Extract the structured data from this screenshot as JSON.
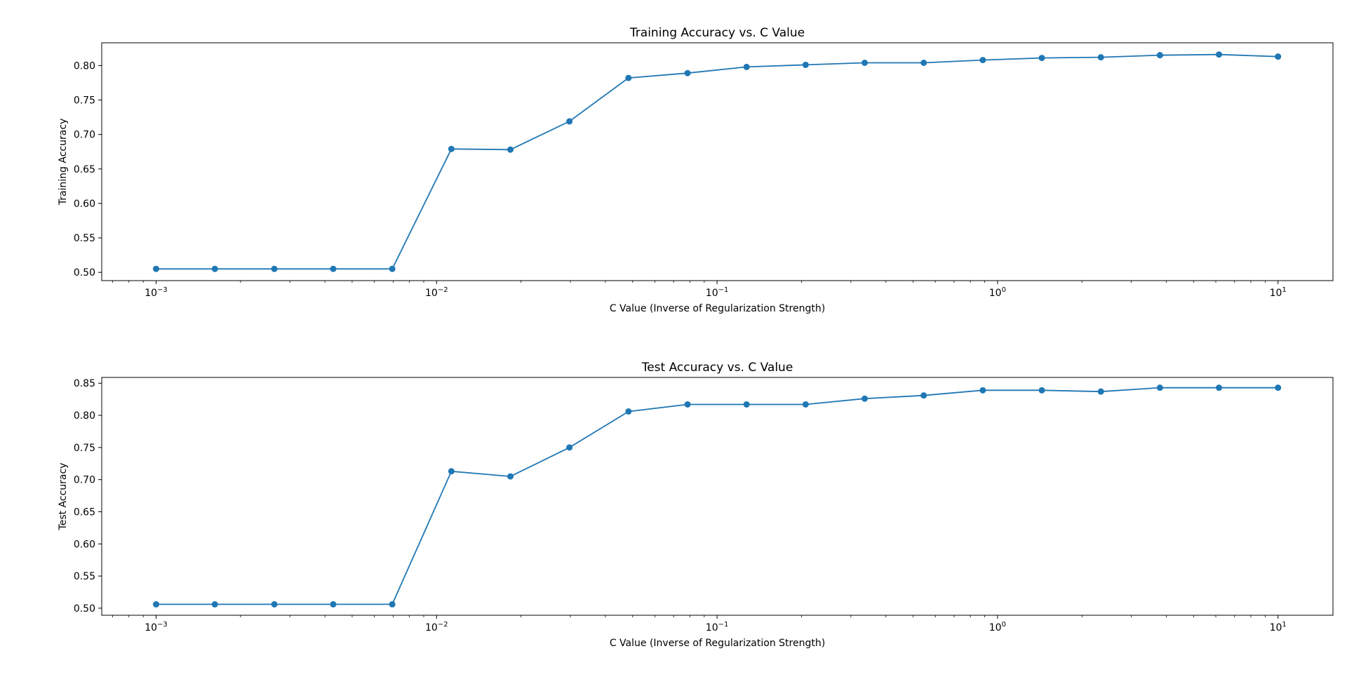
{
  "chart_data": [
    {
      "type": "line",
      "title": "Training Accuracy vs. C Value",
      "xlabel": "C Value (Inverse of Regularization Strength)",
      "ylabel": "Training Accuracy",
      "xscale": "log",
      "xlim": [
        0.00064,
        15.7
      ],
      "ylim": [
        0.488,
        0.833
      ],
      "yticks": [
        "0.50",
        "0.55",
        "0.60",
        "0.65",
        "0.70",
        "0.75",
        "0.80"
      ],
      "xticks": [
        {
          "base": "10",
          "exp": "−3"
        },
        {
          "base": "10",
          "exp": "−2"
        },
        {
          "base": "10",
          "exp": "−1"
        },
        {
          "base": "10",
          "exp": "0"
        },
        {
          "base": "10",
          "exp": "1"
        }
      ],
      "grid": false,
      "color": "#1f77b4",
      "x": [
        0.001,
        0.00162,
        0.00264,
        0.00428,
        0.00695,
        0.01129,
        0.01833,
        0.02976,
        0.04833,
        0.07848,
        0.12743,
        0.20691,
        0.33598,
        0.54556,
        0.88587,
        1.43845,
        2.33572,
        3.79269,
        6.15848,
        10.0
      ],
      "y": [
        0.505,
        0.505,
        0.505,
        0.505,
        0.505,
        0.679,
        0.678,
        0.719,
        0.782,
        0.789,
        0.798,
        0.801,
        0.804,
        0.804,
        0.808,
        0.811,
        0.812,
        0.815,
        0.816,
        0.813
      ]
    },
    {
      "type": "line",
      "title": "Test Accuracy vs. C Value",
      "xlabel": "C Value (Inverse of Regularization Strength)",
      "ylabel": "Test Accuracy",
      "xscale": "log",
      "xlim": [
        0.00064,
        15.7
      ],
      "ylim": [
        0.489,
        0.859
      ],
      "yticks": [
        "0.50",
        "0.55",
        "0.60",
        "0.65",
        "0.70",
        "0.75",
        "0.80",
        "0.85"
      ],
      "xticks": [
        {
          "base": "10",
          "exp": "−3"
        },
        {
          "base": "10",
          "exp": "−2"
        },
        {
          "base": "10",
          "exp": "−1"
        },
        {
          "base": "10",
          "exp": "0"
        },
        {
          "base": "10",
          "exp": "1"
        }
      ],
      "grid": false,
      "color": "#1f77b4",
      "x": [
        0.001,
        0.00162,
        0.00264,
        0.00428,
        0.00695,
        0.01129,
        0.01833,
        0.02976,
        0.04833,
        0.07848,
        0.12743,
        0.20691,
        0.33598,
        0.54556,
        0.88587,
        1.43845,
        2.33572,
        3.79269,
        6.15848,
        10.0
      ],
      "y": [
        0.506,
        0.506,
        0.506,
        0.506,
        0.506,
        0.713,
        0.705,
        0.75,
        0.806,
        0.817,
        0.817,
        0.817,
        0.826,
        0.831,
        0.839,
        0.839,
        0.837,
        0.843,
        0.843,
        0.843
      ]
    }
  ]
}
